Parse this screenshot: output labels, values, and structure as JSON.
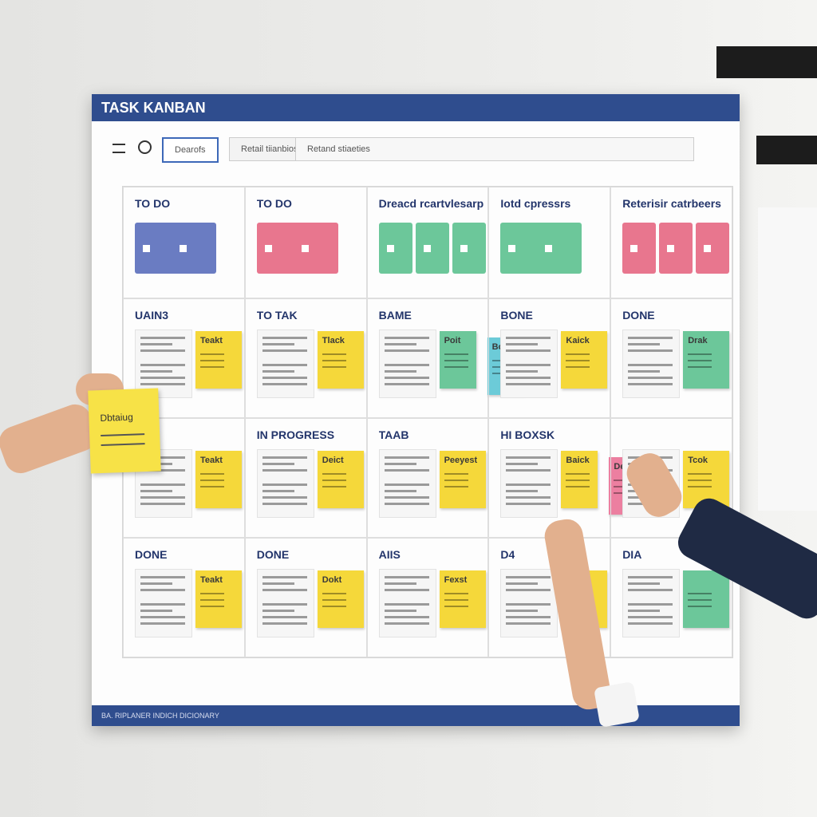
{
  "header": {
    "title": "TASK KANBAN",
    "tabs": [
      "Dearofs",
      "Retail tiianbios",
      "Retand stiaeties"
    ]
  },
  "board": {
    "rows": [
      [
        {
          "heading": "TO DO",
          "tiles": [
            "#6a7cc2",
            "#6a7cc2"
          ]
        },
        {
          "heading": "TO DO",
          "tiles": [
            "#e8768e",
            "#e8768e"
          ]
        },
        {
          "heading": "Dreacd rcartvlesarp Mhrbtaous",
          "tiles": [
            "#6cc79a",
            "#6cc79a",
            "#6cc79a"
          ]
        },
        {
          "heading": "Iotd cpressrs",
          "tiles": [
            "#6cc79a",
            "#6cc79a"
          ]
        },
        {
          "heading": "Reterisir catrbeers",
          "tiles": [
            "#e8768e",
            "#e8768e",
            "#e8768e"
          ]
        }
      ],
      [
        {
          "heading": "UAIN3",
          "notes": [
            {
              "label": "Teakt",
              "color": "#f5d83a"
            }
          ]
        },
        {
          "heading": "TO TAK",
          "notes": [
            {
              "label": "Tlack",
              "color": "#f5d83a"
            }
          ]
        },
        {
          "heading": "BAME",
          "notes": [
            {
              "label": "Poit",
              "color": "#6cc79a"
            },
            {
              "label": "Bocket",
              "color": "#6ccbd8"
            }
          ]
        },
        {
          "heading": "BONE",
          "notes": [
            {
              "label": "Kaick",
              "color": "#f5d83a"
            }
          ]
        },
        {
          "heading": "DONE",
          "notes": [
            {
              "label": "Drak",
              "color": "#6cc79a"
            }
          ]
        }
      ],
      [
        {
          "notes": [
            {
              "label": "Teakt",
              "color": "#f5d83a"
            }
          ]
        },
        {
          "heading": "IN PROGRESS",
          "notes": [
            {
              "label": "Deict",
              "color": "#f5d83a"
            }
          ]
        },
        {
          "heading": "TAAB",
          "notes": [
            {
              "label": "Peeyest",
              "color": "#f5d83a"
            }
          ]
        },
        {
          "heading": "HI BOXSK",
          "notes": [
            {
              "label": "Baick",
              "color": "#f5d83a"
            },
            {
              "label": "Deask",
              "color": "#ec7fa0"
            }
          ]
        },
        {
          "notes": [
            {
              "label": "Tcok",
              "color": "#f5d83a"
            }
          ]
        }
      ],
      [
        {
          "heading": "DONE",
          "notes": [
            {
              "label": "Teakt",
              "color": "#f5d83a"
            }
          ]
        },
        {
          "heading": "DONE",
          "notes": [
            {
              "label": "Dokt",
              "color": "#f5d83a"
            }
          ]
        },
        {
          "heading": "AIIS",
          "notes": [
            {
              "label": "Fexst",
              "color": "#f5d83a"
            }
          ]
        },
        {
          "heading": "D4",
          "notes": [
            {
              "color": "#f5d83a"
            }
          ]
        },
        {
          "heading": "DIA",
          "notes": [
            {
              "color": "#6cc79a"
            }
          ]
        }
      ]
    ]
  },
  "held_note": "Dbtaiug",
  "footer": "BA. RIPLANER INDICH DICIONARY"
}
